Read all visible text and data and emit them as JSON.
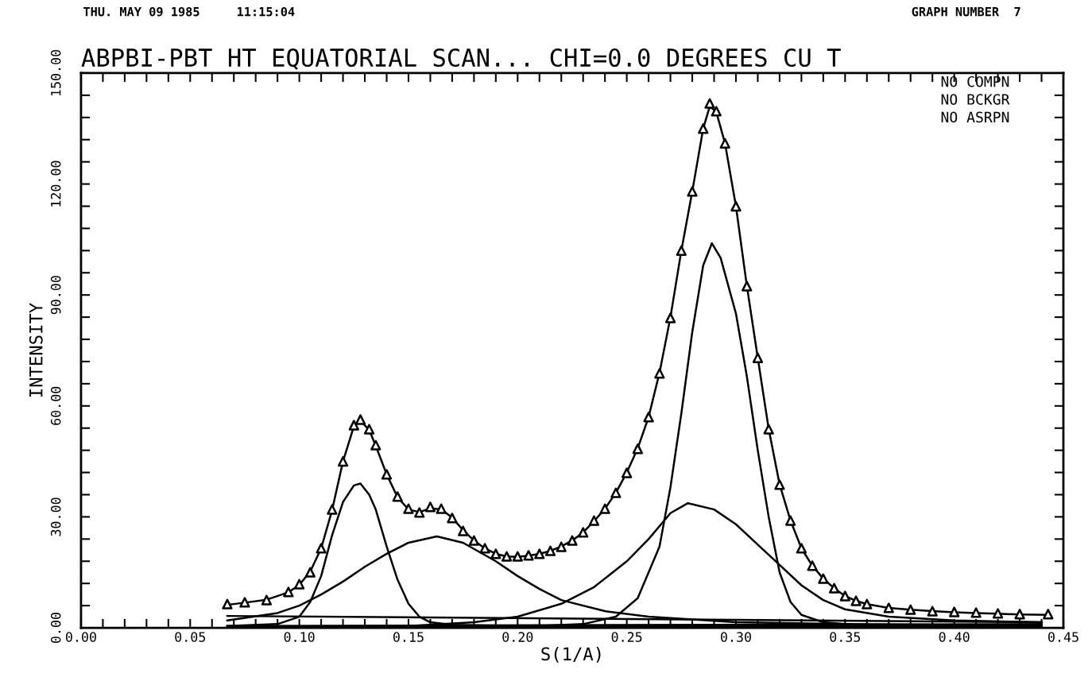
{
  "chart_data": {
    "type": "line",
    "title": "ABPBI-PBT HT EQUATORIAL SCAN... CHI=0.0 DEGREES CU T",
    "xlabel": "S(1/A)",
    "ylabel": "INTENSITY",
    "annotations": [
      "THU. MAY 09 1985     11:15:04",
      "GRAPH NUMBER  7",
      "NO COMPN",
      "NO BCKGR",
      "NO ASRPN"
    ],
    "xlim": [
      0,
      0.45
    ],
    "ylim": [
      0,
      150
    ],
    "xticks": [
      {
        "value": 0,
        "label": "0.00"
      },
      {
        "value": 0.01,
        "label": null
      },
      {
        "value": 0.02,
        "label": null
      },
      {
        "value": 0.03,
        "label": null
      },
      {
        "value": 0.04,
        "label": null
      },
      {
        "value": 0.05,
        "label": "0.05"
      },
      {
        "value": 0.06,
        "label": null
      },
      {
        "value": 0.07,
        "label": null
      },
      {
        "value": 0.08,
        "label": null
      },
      {
        "value": 0.09,
        "label": null
      },
      {
        "value": 0.1,
        "label": "0.10"
      },
      {
        "value": 0.11,
        "label": null
      },
      {
        "value": 0.12,
        "label": null
      },
      {
        "value": 0.13,
        "label": null
      },
      {
        "value": 0.14,
        "label": null
      },
      {
        "value": 0.15,
        "label": "0.15"
      },
      {
        "value": 0.16,
        "label": null
      },
      {
        "value": 0.17,
        "label": null
      },
      {
        "value": 0.18,
        "label": null
      },
      {
        "value": 0.19,
        "label": null
      },
      {
        "value": 0.2,
        "label": "0.20"
      },
      {
        "value": 0.21,
        "label": null
      },
      {
        "value": 0.22,
        "label": null
      },
      {
        "value": 0.23,
        "label": null
      },
      {
        "value": 0.24,
        "label": null
      },
      {
        "value": 0.25,
        "label": "0.25"
      },
      {
        "value": 0.26,
        "label": null
      },
      {
        "value": 0.27,
        "label": null
      },
      {
        "value": 0.28,
        "label": null
      },
      {
        "value": 0.29,
        "label": null
      },
      {
        "value": 0.3,
        "label": "0.30"
      },
      {
        "value": 0.31,
        "label": null
      },
      {
        "value": 0.32,
        "label": null
      },
      {
        "value": 0.33,
        "label": null
      },
      {
        "value": 0.34,
        "label": null
      },
      {
        "value": 0.35,
        "label": "0.35"
      },
      {
        "value": 0.36,
        "label": null
      },
      {
        "value": 0.37,
        "label": null
      },
      {
        "value": 0.38,
        "label": null
      },
      {
        "value": 0.39,
        "label": null
      },
      {
        "value": 0.4,
        "label": "0.40"
      },
      {
        "value": 0.41,
        "label": null
      },
      {
        "value": 0.42,
        "label": null
      },
      {
        "value": 0.43,
        "label": null
      },
      {
        "value": 0.44,
        "label": null
      },
      {
        "value": 0.45,
        "label": "0.45"
      }
    ],
    "yticks": [
      {
        "value": 0,
        "label": "0.00"
      },
      {
        "value": 6,
        "label": null
      },
      {
        "value": 12,
        "label": null
      },
      {
        "value": 18,
        "label": null
      },
      {
        "value": 24,
        "label": null
      },
      {
        "value": 30,
        "label": "30.00"
      },
      {
        "value": 36,
        "label": null
      },
      {
        "value": 42,
        "label": null
      },
      {
        "value": 48,
        "label": null
      },
      {
        "value": 54,
        "label": null
      },
      {
        "value": 60,
        "label": "60.00"
      },
      {
        "value": 66,
        "label": null
      },
      {
        "value": 72,
        "label": null
      },
      {
        "value": 78,
        "label": null
      },
      {
        "value": 84,
        "label": null
      },
      {
        "value": 90,
        "label": "90.00"
      },
      {
        "value": 96,
        "label": null
      },
      {
        "value": 102,
        "label": null
      },
      {
        "value": 108,
        "label": null
      },
      {
        "value": 114,
        "label": null
      },
      {
        "value": 120,
        "label": "120.00"
      },
      {
        "value": 126,
        "label": null
      },
      {
        "value": 132,
        "label": null
      },
      {
        "value": 138,
        "label": null
      },
      {
        "value": 144,
        "label": null
      },
      {
        "value": 150,
        "label": "150.00"
      }
    ],
    "grid": false,
    "legend": false,
    "series": [
      {
        "type": "scatter",
        "marker": "triangle",
        "color": "#000000",
        "x": [
          0.067,
          0.075,
          0.085,
          0.095,
          0.1,
          0.105,
          0.11,
          0.115,
          0.12,
          0.125,
          0.128,
          0.132,
          0.135,
          0.14,
          0.145,
          0.15,
          0.155,
          0.16,
          0.165,
          0.17,
          0.175,
          0.18,
          0.185,
          0.19,
          0.195,
          0.2,
          0.205,
          0.21,
          0.215,
          0.22,
          0.225,
          0.23,
          0.235,
          0.24,
          0.245,
          0.25,
          0.255,
          0.26,
          0.265,
          0.27,
          0.275,
          0.28,
          0.285,
          0.288,
          0.291,
          0.295,
          0.3,
          0.305,
          0.31,
          0.315,
          0.32,
          0.325,
          0.33,
          0.335,
          0.34,
          0.345,
          0.35,
          0.355,
          0.36,
          0.37,
          0.38,
          0.39,
          0.4,
          0.41,
          0.42,
          0.43,
          0.443
        ],
        "values": [
          6.4,
          6.9,
          7.5,
          9.7,
          11.8,
          15,
          21.5,
          32,
          45,
          54.8,
          56.3,
          53.7,
          49.4,
          41.5,
          35.5,
          32.2,
          31.2,
          32.7,
          32.2,
          29.7,
          26.2,
          23.6,
          21.5,
          20,
          19.3,
          19.3,
          19.6,
          20,
          20.8,
          21.9,
          23.6,
          25.8,
          29,
          32.2,
          36.5,
          41.9,
          48.4,
          57,
          68.8,
          83.8,
          102,
          118,
          135,
          141.8,
          139.7,
          131,
          114,
          92.4,
          73,
          53.7,
          38.7,
          29,
          21.5,
          16.8,
          13.3,
          10.7,
          8.6,
          7.3,
          6.4,
          5.4,
          4.9,
          4.5,
          4.3,
          4.1,
          3.9,
          3.7,
          3.7
        ]
      },
      {
        "type": "line",
        "color": "#000000",
        "x": [
          0.067,
          0.075,
          0.085,
          0.095,
          0.1,
          0.105,
          0.11,
          0.115,
          0.12,
          0.125,
          0.128,
          0.132,
          0.135,
          0.14,
          0.145,
          0.15,
          0.155,
          0.16,
          0.165,
          0.17,
          0.175,
          0.18,
          0.185,
          0.19,
          0.195,
          0.2,
          0.205,
          0.21,
          0.215,
          0.22,
          0.225,
          0.23,
          0.235,
          0.24,
          0.245,
          0.25,
          0.255,
          0.26,
          0.265,
          0.27,
          0.275,
          0.28,
          0.285,
          0.288,
          0.291,
          0.295,
          0.3,
          0.305,
          0.31,
          0.315,
          0.32,
          0.325,
          0.33,
          0.335,
          0.34,
          0.345,
          0.35,
          0.355,
          0.36,
          0.37,
          0.38,
          0.39,
          0.4,
          0.41,
          0.42,
          0.43,
          0.443
        ],
        "values": [
          6.2,
          6.8,
          7.6,
          9.6,
          11.6,
          15.2,
          21.5,
          31.8,
          45,
          54.5,
          56,
          53.5,
          49.2,
          41.5,
          35.3,
          32,
          31.3,
          32.3,
          32,
          29.8,
          26.4,
          23.6,
          21.5,
          20,
          19.3,
          19.2,
          19.5,
          20,
          20.8,
          22,
          23.6,
          25.8,
          28.8,
          32.2,
          36.5,
          42,
          48.5,
          57,
          69,
          84,
          102,
          118,
          135,
          141,
          139.5,
          131,
          114,
          92.5,
          73,
          53.8,
          38.8,
          29,
          21.5,
          16.8,
          13.3,
          10.7,
          8.6,
          7.3,
          6.4,
          5.4,
          4.9,
          4.5,
          4.2,
          4,
          3.8,
          3.6,
          3.5
        ]
      },
      {
        "type": "line",
        "color": "#000000",
        "x": [
          0.067,
          0.09,
          0.1,
          0.105,
          0.11,
          0.115,
          0.12,
          0.125,
          0.128,
          0.132,
          0.135,
          0.14,
          0.145,
          0.15,
          0.155,
          0.16,
          0.17,
          0.2,
          0.44
        ],
        "values": [
          0.5,
          1,
          3,
          7,
          14,
          25,
          34,
          38.5,
          39,
          36,
          32,
          22,
          13,
          6.5,
          3,
          1.5,
          0.8,
          0.5,
          0.3
        ]
      },
      {
        "type": "line",
        "color": "#000000",
        "x": [
          0.067,
          0.09,
          0.1,
          0.11,
          0.12,
          0.13,
          0.14,
          0.15,
          0.163,
          0.175,
          0.19,
          0.2,
          0.21,
          0.22,
          0.24,
          0.26,
          0.3,
          0.35,
          0.44
        ],
        "values": [
          2,
          4,
          6,
          9,
          12.5,
          16.5,
          20,
          23,
          24.7,
          23,
          18,
          14,
          10.5,
          7.5,
          4.5,
          3,
          1.5,
          1,
          0.6
        ]
      },
      {
        "type": "line",
        "color": "#000000",
        "x": [
          0.067,
          0.15,
          0.18,
          0.2,
          0.22,
          0.235,
          0.25,
          0.26,
          0.27,
          0.278,
          0.29,
          0.3,
          0.31,
          0.32,
          0.33,
          0.34,
          0.35,
          0.37,
          0.4,
          0.44
        ],
        "values": [
          0.2,
          0.5,
          1.5,
          3,
          6.5,
          11,
          18,
          24,
          31,
          33.7,
          32,
          28,
          22.5,
          17,
          11.5,
          7.5,
          5,
          3,
          2,
          1.5
        ]
      },
      {
        "type": "line",
        "color": "#000000",
        "x": [
          0.067,
          0.2,
          0.23,
          0.245,
          0.255,
          0.265,
          0.27,
          0.275,
          0.28,
          0.285,
          0.289,
          0.293,
          0.3,
          0.305,
          0.31,
          0.315,
          0.32,
          0.325,
          0.33,
          0.34,
          0.36,
          0.44
        ],
        "values": [
          0,
          0.3,
          1,
          3,
          8,
          22,
          38,
          58,
          80,
          98,
          104,
          100,
          85,
          68,
          48,
          30,
          15,
          7,
          3.5,
          1.5,
          0.5,
          0.2
        ]
      },
      {
        "type": "line",
        "color": "#000000",
        "x": [
          0.067,
          0.44
        ],
        "values": [
          3.2,
          1.5
        ]
      },
      {
        "type": "line",
        "color": "#000000",
        "x": [
          0.067,
          0.44
        ],
        "values": [
          0.5,
          1.0
        ]
      }
    ]
  }
}
